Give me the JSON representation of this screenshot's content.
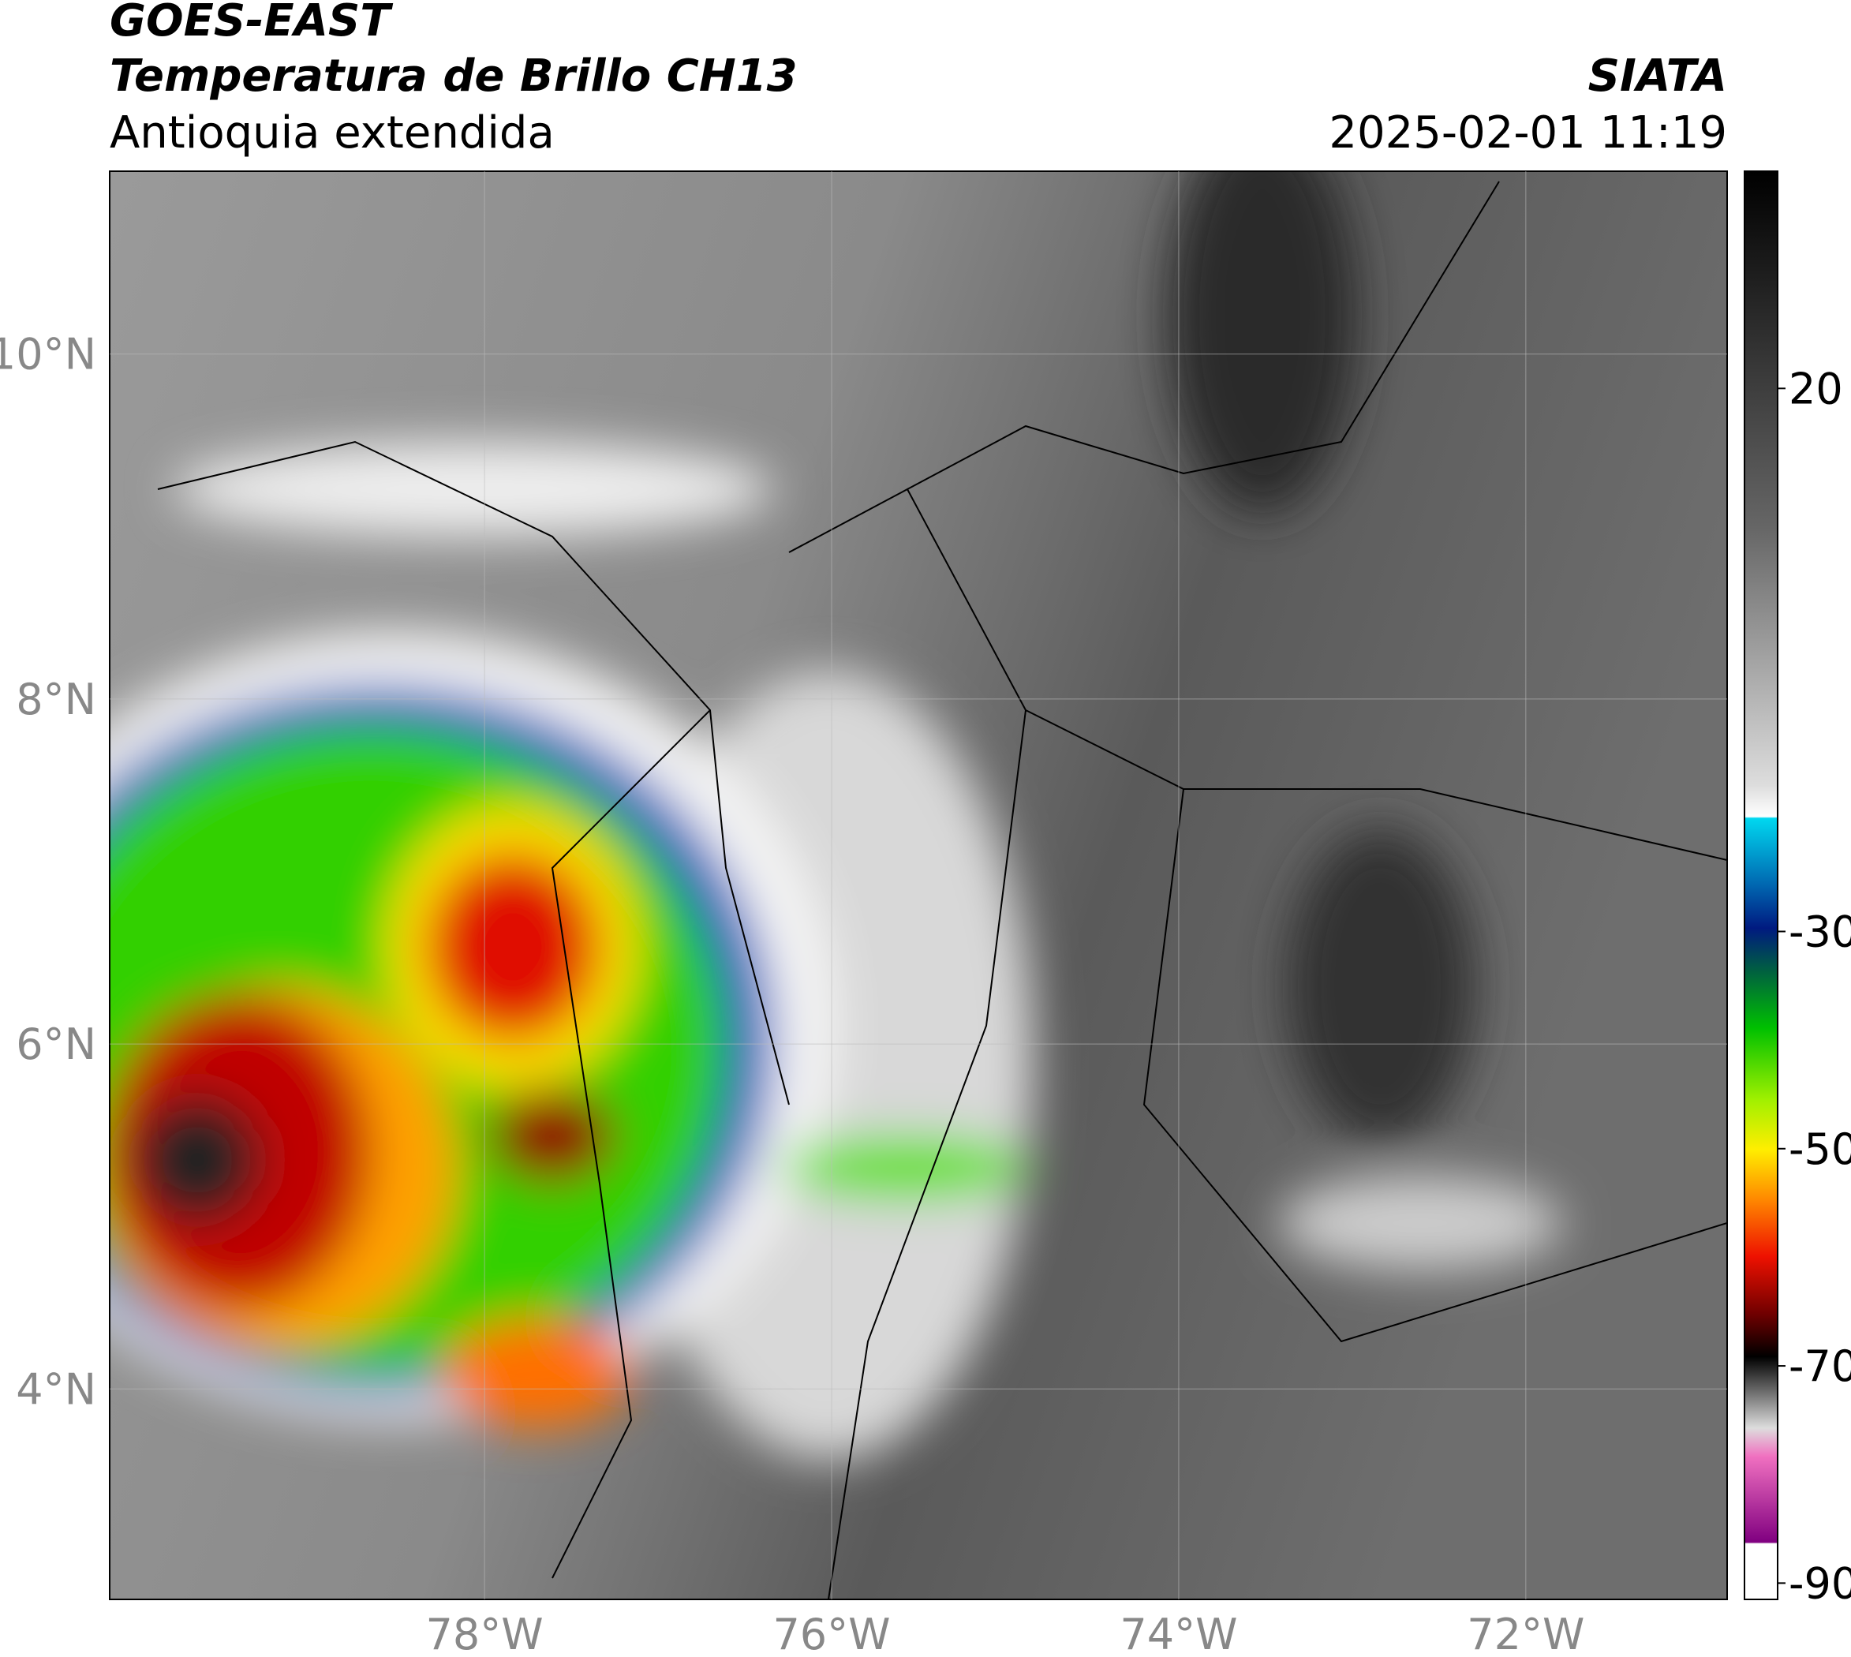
{
  "header": {
    "title": "GOES-EAST",
    "subtitle": "Temperatura de Brillo CH13",
    "region": "Antioquia extendida",
    "source": "SIATA",
    "datetime": "2025-02-01 11:19"
  },
  "map": {
    "xlim": [
      -80.16,
      -70.84
    ],
    "ylim": [
      2.78,
      11.06
    ],
    "xticks": [
      {
        "value": -78,
        "label": "78°W"
      },
      {
        "value": -76,
        "label": "76°W"
      },
      {
        "value": -74,
        "label": "74°W"
      },
      {
        "value": -72,
        "label": "72°W"
      }
    ],
    "yticks": [
      {
        "value": 4,
        "label": "4°N"
      },
      {
        "value": 6,
        "label": "6°N"
      },
      {
        "value": 8,
        "label": "8°N"
      },
      {
        "value": 10,
        "label": "10°N"
      }
    ],
    "grid": true
  },
  "colorbar": {
    "lim": [
      -91.5,
      40
    ],
    "ticks": [
      20,
      -30,
      -50,
      -70,
      -90
    ]
  }
}
